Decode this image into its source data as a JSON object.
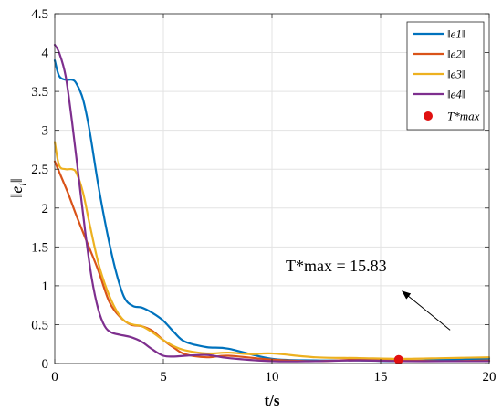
{
  "chart_data": {
    "type": "line",
    "xlabel": "t/s",
    "ylabel": "‖e_i‖",
    "xlim": [
      0,
      20
    ],
    "ylim": [
      0,
      4.5
    ],
    "xticks": [
      0,
      5,
      10,
      15,
      20
    ],
    "xtick_labels": [
      "0",
      "5",
      "10",
      "15",
      "20"
    ],
    "yticks": [
      0,
      0.5,
      1,
      1.5,
      2,
      2.5,
      3,
      3.5,
      4,
      4.5
    ],
    "ytick_labels": [
      "0",
      "0.5",
      "1",
      "1.5",
      "2",
      "2.5",
      "3",
      "3.5",
      "4",
      "4.5"
    ],
    "grid": true,
    "legend_position": "top-right",
    "series": [
      {
        "name": "‖e1‖",
        "color": "#0072BD",
        "x": [
          0,
          0.2,
          0.5,
          0.8,
          1,
          1.3,
          1.6,
          2,
          2.4,
          2.8,
          3.2,
          3.6,
          4,
          4.5,
          5,
          5.5,
          6,
          7,
          8,
          10,
          12,
          14,
          16,
          18,
          20
        ],
        "y": [
          3.9,
          3.7,
          3.65,
          3.65,
          3.6,
          3.4,
          3.0,
          2.3,
          1.7,
          1.2,
          0.85,
          0.74,
          0.72,
          0.65,
          0.55,
          0.4,
          0.28,
          0.21,
          0.19,
          0.06,
          0.04,
          0.04,
          0.03,
          0.05,
          0.06
        ]
      },
      {
        "name": "‖e2‖",
        "color": "#D95319",
        "x": [
          0,
          0.3,
          0.6,
          1,
          1.5,
          2,
          2.5,
          3,
          3.5,
          4,
          4.5,
          5,
          5.5,
          6,
          7,
          8,
          10,
          12,
          14,
          16,
          18,
          20
        ],
        "y": [
          2.6,
          2.4,
          2.2,
          1.9,
          1.55,
          1.2,
          0.8,
          0.6,
          0.5,
          0.48,
          0.42,
          0.3,
          0.2,
          0.12,
          0.08,
          0.1,
          0.05,
          0.03,
          0.05,
          0.04,
          0.03,
          0.04
        ]
      },
      {
        "name": "‖e3‖",
        "color": "#EDB120",
        "x": [
          0,
          0.2,
          0.5,
          0.8,
          1,
          1.3,
          1.6,
          2,
          2.4,
          2.8,
          3.2,
          3.6,
          4,
          4.5,
          5,
          5.5,
          6,
          7,
          8,
          9,
          10,
          12,
          14,
          16,
          18,
          20
        ],
        "y": [
          2.85,
          2.55,
          2.5,
          2.5,
          2.45,
          2.2,
          1.8,
          1.3,
          0.95,
          0.7,
          0.55,
          0.5,
          0.48,
          0.4,
          0.3,
          0.22,
          0.17,
          0.13,
          0.14,
          0.12,
          0.13,
          0.08,
          0.07,
          0.06,
          0.07,
          0.08
        ]
      },
      {
        "name": "‖e4‖",
        "color": "#7E2F8E",
        "x": [
          0,
          0.2,
          0.5,
          0.8,
          1.1,
          1.4,
          1.7,
          2,
          2.3,
          2.6,
          3,
          3.5,
          4,
          4.5,
          5,
          5.5,
          6,
          7,
          8,
          10,
          12,
          14,
          16,
          18,
          20
        ],
        "y": [
          4.1,
          4.0,
          3.7,
          3.1,
          2.4,
          1.7,
          1.1,
          0.7,
          0.48,
          0.4,
          0.37,
          0.34,
          0.28,
          0.18,
          0.1,
          0.09,
          0.1,
          0.11,
          0.07,
          0.03,
          0.03,
          0.04,
          0.03,
          0.03,
          0.03
        ]
      }
    ],
    "marker": {
      "name": "T*max",
      "color": "#E01010",
      "x": 15.83,
      "y": 0.05
    },
    "annotation": {
      "text": "T*max = 15.83",
      "arrow_from": [
        18.2,
        0.43
      ],
      "arrow_to": [
        16.0,
        0.93
      ]
    }
  }
}
